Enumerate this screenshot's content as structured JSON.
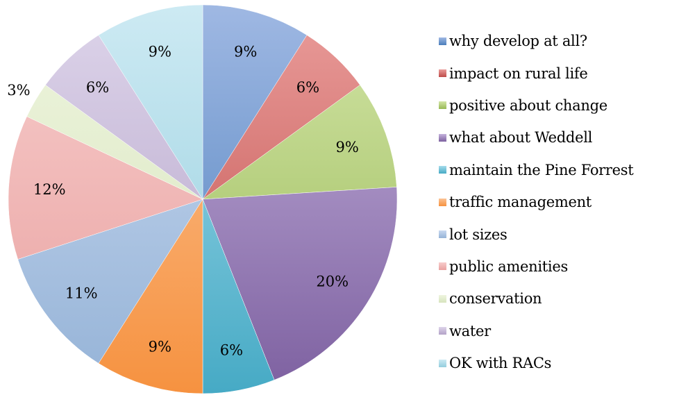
{
  "chart_data": {
    "type": "pie",
    "title": "",
    "legend_position": "right",
    "slices": [
      {
        "label": "why develop at all?",
        "value": 9,
        "value_label": "9%",
        "color": "#4a7ebb",
        "color_light": "#9fb8e3"
      },
      {
        "label": "impact on rural life",
        "value": 6,
        "value_label": "6%",
        "color": "#be4b48",
        "color_light": "#ea9d9b"
      },
      {
        "label": "positive about change",
        "value": 9,
        "value_label": "9%",
        "color": "#98b954",
        "color_light": "#d3e5a8"
      },
      {
        "label": "what about Weddell",
        "value": 20,
        "value_label": "20%",
        "color": "#7d60a0",
        "color_light": "#c4b2dc"
      },
      {
        "label": "maintain the Pine Forrest",
        "value": 6,
        "value_label": "6%",
        "color": "#46aac5",
        "color_light": "#a6dceb"
      },
      {
        "label": "traffic management",
        "value": 9,
        "value_label": "9%",
        "color": "#f69240",
        "color_light": "#fbc395"
      },
      {
        "label": "lot sizes",
        "value": 11,
        "value_label": "11%",
        "color": "#95b3d7",
        "color_light": "#c9d9f0"
      },
      {
        "label": "public amenities",
        "value": 12,
        "value_label": "12%",
        "color": "#e9a1a0",
        "color_light": "#f7cdcc"
      },
      {
        "label": "conservation",
        "value": 3,
        "value_label": "3%",
        "color": "#d7e4bd",
        "color_light": "#eef5de"
      },
      {
        "label": "water",
        "value": 6,
        "value_label": "6%",
        "color": "#b3a2c7",
        "color_light": "#ddd4ea"
      },
      {
        "label": "OK with RACs",
        "value": 9,
        "value_label": "9%",
        "color": "#93cddd",
        "color_light": "#cdeaf3"
      }
    ]
  }
}
